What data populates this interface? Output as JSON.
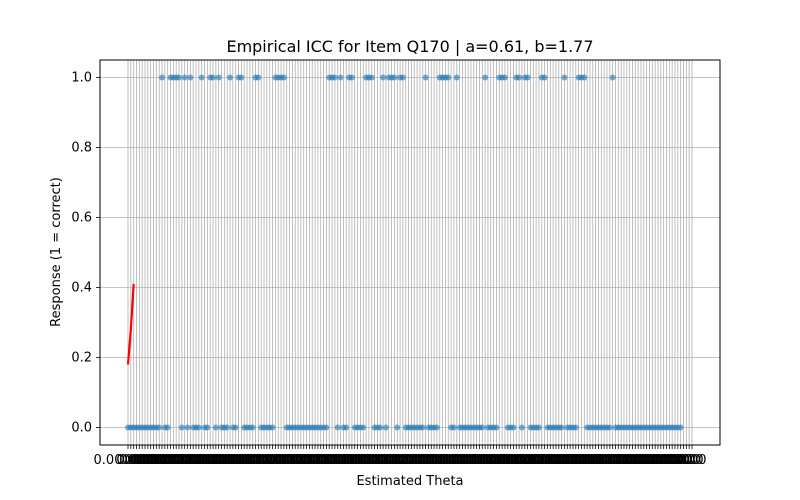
{
  "chart_data": {
    "type": "scatter",
    "title": "Empirical ICC for Item Q170 | a=0.61, b=1.77",
    "xlabel": "Estimated Theta",
    "ylabel": "Response (1 = correct)",
    "ylim": [
      -0.05,
      1.05
    ],
    "y_ticks": [
      "0.0",
      "0.2",
      "0.4",
      "0.6",
      "0.8",
      "1.0"
    ],
    "x_axis": "categorical",
    "x_category_count": 200,
    "grid": true,
    "point_color": "#1f77b4",
    "curve_color": "#ff0000",
    "responses": [
      0,
      0,
      0,
      0,
      0,
      0,
      0,
      0,
      0,
      0,
      0,
      0,
      1,
      0,
      0,
      1,
      1,
      1,
      1,
      0,
      1,
      0,
      1,
      0,
      0,
      0,
      1,
      0,
      0,
      1,
      1,
      0,
      1,
      0,
      0,
      0,
      1,
      0,
      0,
      1,
      1,
      0,
      0,
      0,
      0,
      1,
      1,
      0,
      0,
      0,
      0,
      0,
      1,
      1,
      1,
      1,
      0,
      0,
      0,
      0,
      0,
      0,
      0,
      0,
      0,
      0,
      0,
      0,
      0,
      0,
      0,
      1,
      1,
      1,
      0,
      1,
      0,
      0,
      1,
      1,
      0,
      0,
      0,
      0,
      1,
      1,
      1,
      0,
      0,
      0,
      1,
      0,
      1,
      1,
      1,
      0,
      1,
      1,
      0,
      0,
      0,
      0,
      0,
      0,
      0,
      1,
      0,
      0,
      0,
      0,
      1,
      1,
      1,
      1,
      0,
      0,
      1,
      0,
      0,
      0,
      0,
      0,
      0,
      0,
      0,
      0,
      1,
      0,
      0,
      0,
      0,
      1,
      1,
      1,
      0,
      0,
      0,
      1,
      1,
      0,
      1,
      1,
      0,
      0,
      0,
      0,
      1,
      1,
      0,
      0,
      0,
      0,
      0,
      0,
      1,
      0,
      0,
      0,
      0,
      1,
      1,
      1,
      0,
      0,
      0,
      0,
      0,
      0,
      0,
      0,
      0,
      1,
      0,
      0,
      0,
      0,
      0,
      0,
      0,
      0,
      0,
      0,
      0,
      0,
      0,
      0,
      0,
      0,
      0,
      0,
      0,
      0,
      0,
      0,
      0,
      0
    ],
    "fitted_curve": {
      "name": "",
      "points": [
        [
          0,
          0.18
        ],
        [
          1,
          0.28
        ],
        [
          2,
          0.41
        ]
      ]
    }
  }
}
